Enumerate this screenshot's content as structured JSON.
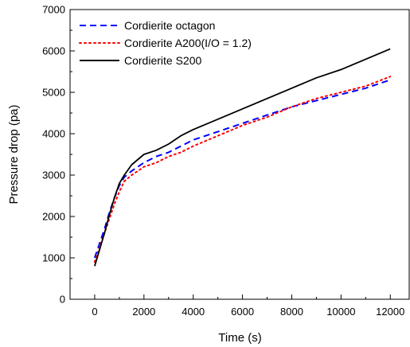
{
  "chart_data": {
    "type": "line",
    "xlabel": "Time (s)",
    "ylabel": "Pressure drop (pa)",
    "xlim": [
      -1000,
      12800
    ],
    "ylim": [
      0,
      7000
    ],
    "x_ticks": [
      0,
      2000,
      4000,
      6000,
      8000,
      10000,
      12000
    ],
    "y_ticks": [
      0,
      1000,
      2000,
      3000,
      4000,
      5000,
      6000,
      7000
    ],
    "x_tick_labels": [
      "0",
      "2000",
      "4000",
      "6000",
      "8000",
      "10000",
      "12000"
    ],
    "y_tick_labels": [
      "0",
      "1000",
      "2000",
      "3000",
      "4000",
      "5000",
      "6000",
      "7000"
    ],
    "grid": false,
    "legend_position": "top-left",
    "series": [
      {
        "name": "Cordierite octagon",
        "color": "#0000ff",
        "style": "dashed",
        "x": [
          0,
          200,
          400,
          600,
          800,
          1000,
          1200,
          1500,
          2000,
          2500,
          3000,
          3500,
          4000,
          5000,
          6000,
          7000,
          8000,
          9000,
          10000,
          11000,
          12000
        ],
        "y": [
          1000,
          1350,
          1700,
          2100,
          2450,
          2750,
          2950,
          3100,
          3300,
          3450,
          3550,
          3700,
          3850,
          4050,
          4250,
          4450,
          4650,
          4800,
          4950,
          5100,
          5300
        ]
      },
      {
        "name": "Cordierite A200(I/O = 1.2)",
        "color": "#ff0000",
        "style": "dotted",
        "x": [
          0,
          200,
          400,
          600,
          800,
          1000,
          1200,
          1500,
          2000,
          2500,
          3000,
          3500,
          4000,
          5000,
          6000,
          7000,
          8000,
          9000,
          10000,
          11000,
          12000
        ],
        "y": [
          900,
          1250,
          1600,
          1950,
          2300,
          2600,
          2850,
          3000,
          3200,
          3300,
          3450,
          3550,
          3700,
          3950,
          4200,
          4400,
          4650,
          4850,
          5000,
          5150,
          5380
        ]
      },
      {
        "name": "Cordierite S200",
        "color": "#000000",
        "style": "solid",
        "x": [
          0,
          200,
          400,
          600,
          800,
          1000,
          1200,
          1500,
          2000,
          2500,
          3000,
          3500,
          4000,
          5000,
          6000,
          7000,
          8000,
          9000,
          10000,
          11000,
          12000
        ],
        "y": [
          800,
          1200,
          1600,
          2050,
          2450,
          2800,
          3000,
          3250,
          3500,
          3600,
          3750,
          3950,
          4100,
          4350,
          4600,
          4850,
          5100,
          5350,
          5550,
          5800,
          6050
        ]
      }
    ]
  }
}
